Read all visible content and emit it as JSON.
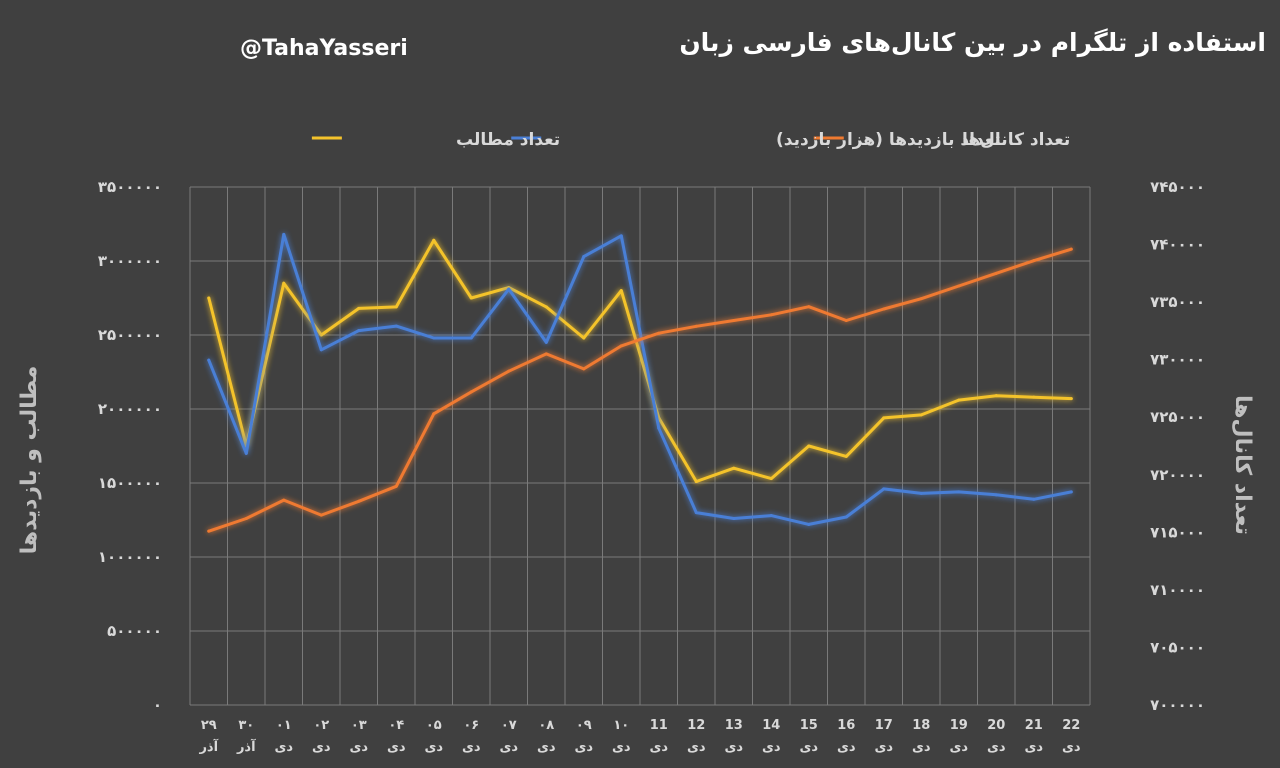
{
  "header": {
    "title": "استفاده از تلگرام در بین کانال‌های فارسی زبان",
    "handle": "@TahaYasseri"
  },
  "chart_data": {
    "type": "line",
    "title": "استفاده از تلگرام در بین کانال‌های فارسی زبان",
    "legend_position": "top",
    "grid": true,
    "ylabel_left": "مطالب و بازدیدها",
    "ylabel_right": "تعداد کانال‌ها",
    "ylim_left": [
      0,
      3500000
    ],
    "ylim_right": [
      700000,
      745000
    ],
    "yticks_left": [
      "۰",
      "۵۰۰۰۰۰",
      "۱۰۰۰۰۰۰",
      "۱۵۰۰۰۰۰",
      "۲۰۰۰۰۰۰",
      "۲۵۰۰۰۰۰",
      "۳۰۰۰۰۰۰",
      "۳۵۰۰۰۰۰"
    ],
    "yticks_right": [
      "۷۰۰۰۰۰",
      "۷۰۵۰۰۰",
      "۷۱۰۰۰۰",
      "۷۱۵۰۰۰",
      "۷۲۰۰۰۰",
      "۷۲۵۰۰۰",
      "۷۳۰۰۰۰",
      "۷۳۵۰۰۰",
      "۷۴۰۰۰۰",
      "۷۴۵۰۰۰"
    ],
    "categories": [
      {
        "day": "۲۹",
        "month": "آذر"
      },
      {
        "day": "۳۰",
        "month": "آذر"
      },
      {
        "day": "۰۱",
        "month": "دی"
      },
      {
        "day": "۰۲",
        "month": "دی"
      },
      {
        "day": "۰۳",
        "month": "دی"
      },
      {
        "day": "۰۴",
        "month": "دی"
      },
      {
        "day": "۰۵",
        "month": "دی"
      },
      {
        "day": "۰۶",
        "month": "دی"
      },
      {
        "day": "۰۷",
        "month": "دی"
      },
      {
        "day": "۰۸",
        "month": "دی"
      },
      {
        "day": "۰۹",
        "month": "دی"
      },
      {
        "day": "۱۰",
        "month": "دی"
      },
      {
        "day": "11",
        "month": "دی"
      },
      {
        "day": "12",
        "month": "دی"
      },
      {
        "day": "13",
        "month": "دی"
      },
      {
        "day": "14",
        "month": "دی"
      },
      {
        "day": "15",
        "month": "دی"
      },
      {
        "day": "16",
        "month": "دی"
      },
      {
        "day": "17",
        "month": "دی"
      },
      {
        "day": "18",
        "month": "دی"
      },
      {
        "day": "19",
        "month": "دی"
      },
      {
        "day": "20",
        "month": "دی"
      },
      {
        "day": "21",
        "month": "دی"
      },
      {
        "day": "22",
        "month": "دی"
      }
    ],
    "series": [
      {
        "name": "تعداد مطالب",
        "color": "#f4c32c",
        "axis": "left",
        "values": [
          2750000,
          1750000,
          2850000,
          2500000,
          2680000,
          2690000,
          3140000,
          2750000,
          2820000,
          2690000,
          2480000,
          2800000,
          1940000,
          1510000,
          1600000,
          1530000,
          1750000,
          1680000,
          1940000,
          1960000,
          2060000,
          2090000,
          2080000,
          2070000
        ]
      },
      {
        "name": "تعداد بازدیدها (هزار بازدید)",
        "color": "#4a7fd6",
        "axis": "left",
        "values": [
          2330000,
          1700000,
          3180000,
          2400000,
          2530000,
          2560000,
          2480000,
          2480000,
          2810000,
          2450000,
          3030000,
          3170000,
          1870000,
          1300000,
          1260000,
          1280000,
          1220000,
          1270000,
          1460000,
          1430000,
          1440000,
          1420000,
          1390000,
          1440000
        ]
      },
      {
        "name": "تعداد کانال‌ها",
        "color": "#ef7a30",
        "axis": "right",
        "values": [
          715100,
          716200,
          717800,
          716500,
          717700,
          719000,
          725300,
          727200,
          729000,
          730500,
          729200,
          731200,
          732300,
          732900,
          733400,
          733900,
          734600,
          733400,
          734400,
          735300,
          736400,
          737500,
          738600,
          739600
        ]
      }
    ]
  }
}
